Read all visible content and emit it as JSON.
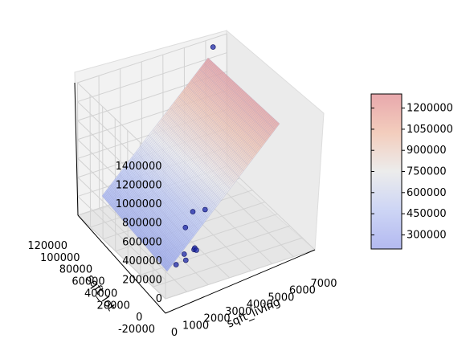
{
  "chart_data": {
    "type": "surface3d",
    "title": "",
    "axes": {
      "x": {
        "label": "sqft_living",
        "ticks": [
          "0",
          "1000",
          "2000",
          "3000",
          "4000",
          "5000",
          "6000",
          "7000"
        ],
        "range": [
          0,
          7000
        ]
      },
      "y": {
        "label": "sqft_lot",
        "ticks": [
          "-20000",
          "0",
          "20000",
          "40000",
          "60000",
          "80000",
          "100000",
          "120000"
        ],
        "range": [
          -20000,
          120000
        ]
      },
      "z": {
        "label": "",
        "ticks": [
          "0",
          "200000",
          "400000",
          "600000",
          "800000",
          "1000000",
          "1200000",
          "1400000"
        ],
        "range": [
          0,
          1400000
        ]
      }
    },
    "points": [
      {
        "sqft_living": 1200,
        "sqft_lot": 4000,
        "price": 120000
      },
      {
        "sqft_living": 1600,
        "sqft_lot": 2000,
        "price": 150000
      },
      {
        "sqft_living": 1700,
        "sqft_lot": 8000,
        "price": 170000
      },
      {
        "sqft_living": 2100,
        "sqft_lot": 6000,
        "price": 200000
      },
      {
        "sqft_living": 2150,
        "sqft_lot": 6500,
        "price": 210000
      },
      {
        "sqft_living": 2200,
        "sqft_lot": 5500,
        "price": 190000
      },
      {
        "sqft_living": 2400,
        "sqft_lot": 30000,
        "price": 260000
      },
      {
        "sqft_living": 3100,
        "sqft_lot": 42000,
        "price": 300000
      },
      {
        "sqft_living": 3500,
        "sqft_lot": 36000,
        "price": 330000
      },
      {
        "sqft_living": 6200,
        "sqft_lot": 115000,
        "price": 1350000
      }
    ],
    "surface": {
      "description_price_range": [
        150000,
        1350000
      ],
      "colormap": "coolwarm",
      "alpha": 0.4
    },
    "colorbar": {
      "ticks": [
        "300000",
        "450000",
        "600000",
        "750000",
        "900000",
        "1050000",
        "1200000"
      ],
      "range": [
        200000,
        1300000
      ]
    },
    "colors": {
      "low": "#3b4cc0",
      "mid": "#dddddd",
      "high": "#b40426",
      "points": "#1f2aa8"
    }
  }
}
